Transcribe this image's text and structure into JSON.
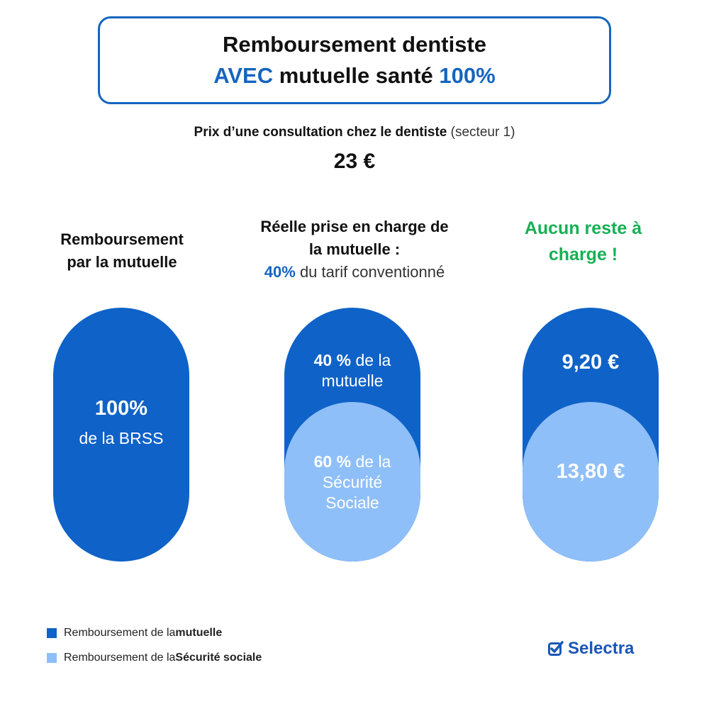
{
  "title": {
    "line1": "Remboursement dentiste",
    "line2_accent1": "AVEC",
    "line2_text": " mutuelle santé ",
    "line2_accent2": "100%"
  },
  "price": {
    "label_bold": "Prix d’une consultation chez le dentiste",
    "label_regular": " (secteur 1)",
    "value": "23 €"
  },
  "columns": [
    {
      "heading_line1": "Remboursement",
      "heading_line2": "par la mutuelle",
      "pill_pct": "100%",
      "pill_text": "de la BRSS"
    },
    {
      "heading_line1": "Réelle prise en charge de",
      "heading_line2": "la mutuelle :",
      "sub_pct": "40%",
      "sub_text": " du tarif conventionné",
      "top_pct": "40 %",
      "top_text1": " de la",
      "top_text2": "mutuelle",
      "bottom_pct": "60 %",
      "bottom_text1": " de la",
      "bottom_text2": "Sécurité",
      "bottom_text3": "Sociale"
    },
    {
      "heading_line1": "Aucun reste à",
      "heading_line2": "charge !",
      "top_value": "9,20 €",
      "bottom_value": "13,80 €"
    }
  ],
  "legend": [
    {
      "prefix": "Remboursement de la ",
      "bold": "mutuelle",
      "color": "#0f62c7"
    },
    {
      "prefix": "Remboursement de la ",
      "bold": "Sécurité sociale",
      "color": "#8fbff8"
    }
  ],
  "brand": {
    "name": "Selectra"
  },
  "colors": {
    "accent_blue": "#1565c0",
    "dark_blue": "#0f62c7",
    "light_blue": "#8fbff8",
    "green": "#16b054"
  }
}
